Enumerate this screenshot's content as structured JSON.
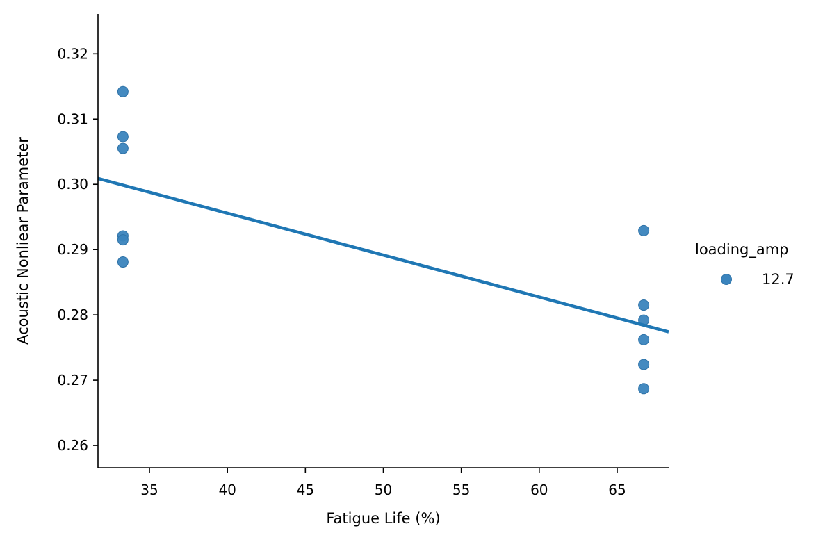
{
  "chart_data": {
    "type": "scatter",
    "title": "",
    "xlabel": "Fatigue Life (%)",
    "ylabel": "Acoustic Nonliear Parameter",
    "xlim": [
      31.7,
      68.3
    ],
    "ylim": [
      0.2566,
      0.3261
    ],
    "xticks": [
      35,
      40,
      45,
      50,
      55,
      60,
      65
    ],
    "xtick_labels": [
      "35",
      "40",
      "45",
      "50",
      "55",
      "60",
      "65"
    ],
    "yticks": [
      0.26,
      0.27,
      0.28,
      0.29,
      0.3,
      0.31,
      0.32
    ],
    "ytick_labels": [
      "0.26",
      "0.27",
      "0.28",
      "0.29",
      "0.30",
      "0.31",
      "0.32"
    ],
    "grid": false,
    "legend": {
      "title": "loading_amp",
      "placement": "right",
      "entries": [
        "12.7"
      ]
    },
    "series": [
      {
        "name": "12.7",
        "color": "#3a84bd",
        "points": [
          {
            "x": 33.3,
            "y": 0.3142
          },
          {
            "x": 33.3,
            "y": 0.3073
          },
          {
            "x": 33.3,
            "y": 0.3055
          },
          {
            "x": 33.3,
            "y": 0.2921
          },
          {
            "x": 33.3,
            "y": 0.2915
          },
          {
            "x": 33.3,
            "y": 0.2881
          },
          {
            "x": 66.7,
            "y": 0.2929
          },
          {
            "x": 66.7,
            "y": 0.2815
          },
          {
            "x": 66.7,
            "y": 0.2792
          },
          {
            "x": 66.7,
            "y": 0.2762
          },
          {
            "x": 66.7,
            "y": 0.2724
          },
          {
            "x": 66.7,
            "y": 0.2687
          }
        ]
      }
    ],
    "regression_line": {
      "color": "#1f77b4",
      "points": [
        {
          "x": 31.7,
          "y": 0.3009
        },
        {
          "x": 68.3,
          "y": 0.2774
        }
      ]
    }
  }
}
